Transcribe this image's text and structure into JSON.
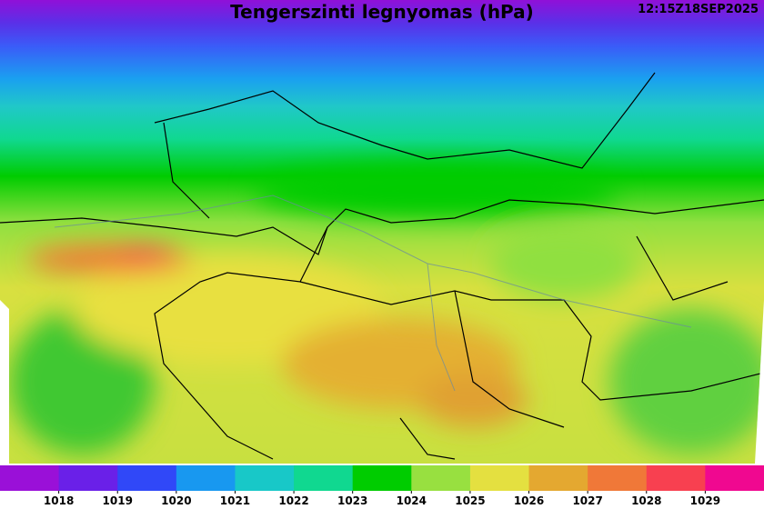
{
  "header": {
    "title": "Tengerszinti legnyomas (hPa)",
    "timestamp": "12:15Z18SEP2025"
  },
  "colorbar": {
    "colors": [
      "#9a10d8",
      "#6a20e8",
      "#3048f8",
      "#1898f0",
      "#18c8c8",
      "#10d890",
      "#00cc00",
      "#98e040",
      "#e4e040",
      "#e4a830",
      "#f07838",
      "#f84050",
      "#f00890"
    ],
    "ticks": [
      1018,
      1019,
      1020,
      1021,
      1022,
      1023,
      1024,
      1025,
      1026,
      1027,
      1028,
      1029
    ]
  }
}
